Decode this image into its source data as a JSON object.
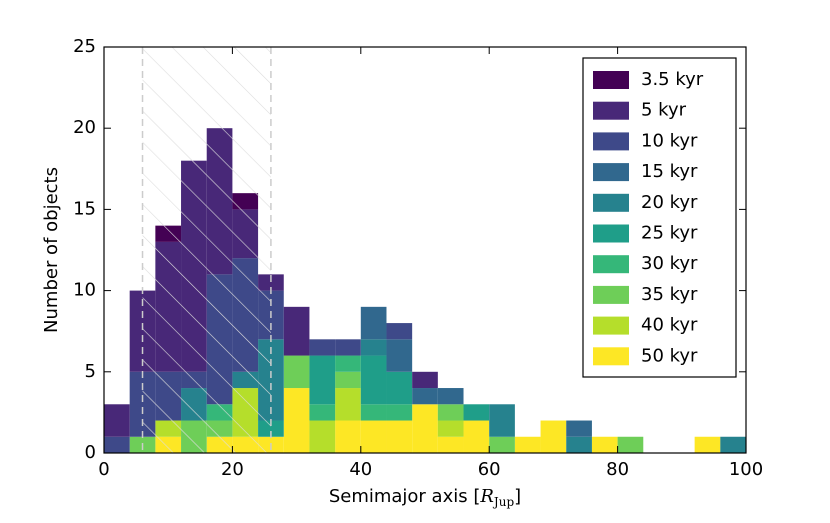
{
  "chart_data": {
    "type": "histogram",
    "x_label_parts": [
      "Semimajor axis [",
      "R",
      "Jup",
      "]"
    ],
    "y_label": "Number of objects",
    "bins": [
      0,
      4,
      8,
      12,
      16,
      20,
      24,
      28,
      32,
      36,
      40,
      44,
      48,
      52,
      56,
      60,
      64,
      68,
      72,
      76,
      80,
      84,
      88,
      92,
      96,
      100
    ],
    "series": [
      {
        "name": "3.5 kyr",
        "color": "#440154",
        "values": [
          0,
          0,
          1,
          0,
          0,
          1,
          0,
          0,
          0,
          0,
          0,
          0,
          0,
          0,
          0,
          0,
          0,
          0,
          0,
          0,
          0,
          0,
          0,
          0,
          0
        ]
      },
      {
        "name": "5 kyr",
        "color": "#482878",
        "values": [
          2,
          5,
          8,
          13,
          9,
          3,
          1,
          3,
          0,
          0,
          0,
          0,
          1,
          0,
          0,
          0,
          0,
          0,
          0,
          0,
          0,
          0,
          0,
          0,
          0
        ]
      },
      {
        "name": "10 kyr",
        "color": "#3e4989",
        "values": [
          1,
          4,
          3,
          1,
          8,
          7,
          3,
          0,
          1,
          1,
          0,
          1,
          0,
          0,
          0,
          0,
          0,
          0,
          0,
          0,
          0,
          0,
          0,
          0,
          0
        ]
      },
      {
        "name": "15 kyr",
        "color": "#31688e",
        "values": [
          0,
          0,
          0,
          0,
          0,
          0,
          0,
          0,
          0,
          0,
          2,
          2,
          1,
          1,
          0,
          0,
          0,
          0,
          1,
          0,
          0,
          0,
          0,
          0,
          0
        ]
      },
      {
        "name": "20 kyr",
        "color": "#26828e",
        "values": [
          0,
          0,
          0,
          2,
          0,
          1,
          5,
          0,
          0,
          0,
          1,
          0,
          0,
          0,
          0,
          2,
          0,
          0,
          1,
          0,
          0,
          0,
          0,
          0,
          1
        ]
      },
      {
        "name": "25 kyr",
        "color": "#1f9e89",
        "values": [
          0,
          0,
          0,
          0,
          0,
          0,
          1,
          0,
          3,
          0,
          3,
          2,
          0,
          0,
          1,
          0,
          0,
          0,
          0,
          0,
          0,
          0,
          0,
          0,
          0
        ]
      },
      {
        "name": "30 kyr",
        "color": "#35b779",
        "values": [
          0,
          0,
          0,
          0,
          1,
          0,
          0,
          0,
          1,
          1,
          1,
          1,
          0,
          0,
          0,
          0,
          0,
          0,
          0,
          0,
          0,
          0,
          0,
          0,
          0
        ]
      },
      {
        "name": "35 kyr",
        "color": "#6ece58",
        "values": [
          0,
          1,
          0,
          2,
          1,
          0,
          0,
          2,
          0,
          1,
          0,
          0,
          0,
          1,
          0,
          1,
          0,
          0,
          0,
          0,
          1,
          0,
          0,
          0,
          0
        ]
      },
      {
        "name": "40 kyr",
        "color": "#b5de2b",
        "values": [
          0,
          0,
          1,
          0,
          0,
          3,
          0,
          0,
          2,
          2,
          0,
          0,
          0,
          1,
          0,
          0,
          0,
          0,
          0,
          0,
          0,
          0,
          0,
          0,
          0
        ]
      },
      {
        "name": "50 kyr",
        "color": "#fde725",
        "values": [
          0,
          0,
          1,
          0,
          1,
          1,
          1,
          4,
          0,
          2,
          2,
          2,
          3,
          1,
          2,
          0,
          1,
          2,
          0,
          1,
          0,
          0,
          0,
          1,
          0
        ]
      }
    ],
    "stacked": true,
    "shaded_region": [
      6,
      26
    ],
    "xlim": [
      0,
      100
    ],
    "xticks": [
      0,
      20,
      40,
      60,
      80,
      100
    ],
    "ylim": [
      0,
      25
    ],
    "yticks": [
      0,
      5,
      10,
      15,
      20,
      25
    ],
    "legend": "upper right"
  }
}
